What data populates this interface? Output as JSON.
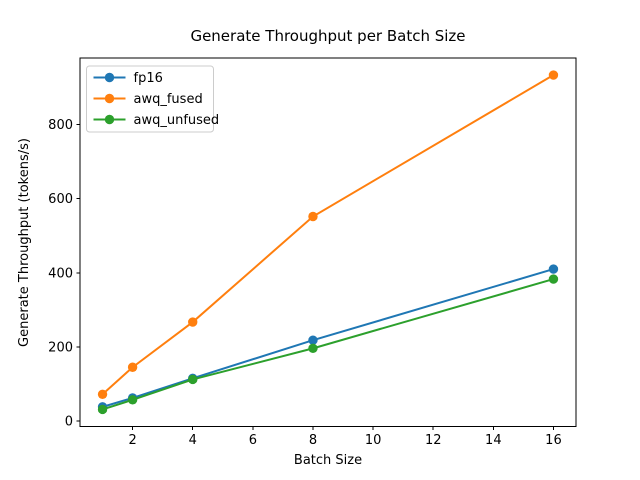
{
  "chart_data": {
    "type": "line",
    "title": "Generate Throughput per Batch Size",
    "xlabel": "Batch Size",
    "ylabel": "Generate Throughput (tokens/s)",
    "x": [
      1,
      2,
      4,
      8,
      16
    ],
    "series": [
      {
        "name": "fp16",
        "color": "#1f77b4",
        "values": [
          38,
          62,
          115,
          218,
          410
        ]
      },
      {
        "name": "awq_fused",
        "color": "#ff7f0e",
        "values": [
          72,
          145,
          267,
          552,
          934
        ]
      },
      {
        "name": "awq_unfused",
        "color": "#2ca02c",
        "values": [
          31,
          57,
          112,
          196,
          383
        ]
      }
    ],
    "xlim": [
      0.25,
      16.75
    ],
    "ylim": [
      -15,
      980
    ],
    "xticks": [
      2,
      4,
      6,
      8,
      10,
      12,
      14,
      16
    ],
    "yticks": [
      0,
      200,
      400,
      600,
      800
    ],
    "grid": false,
    "legend_position": "upper left",
    "marker": "o",
    "line_width": 2,
    "marker_radius": 4.7,
    "axes_color": "#000000",
    "legend_border_color": "#cccccc",
    "background_color": "#ffffff"
  }
}
